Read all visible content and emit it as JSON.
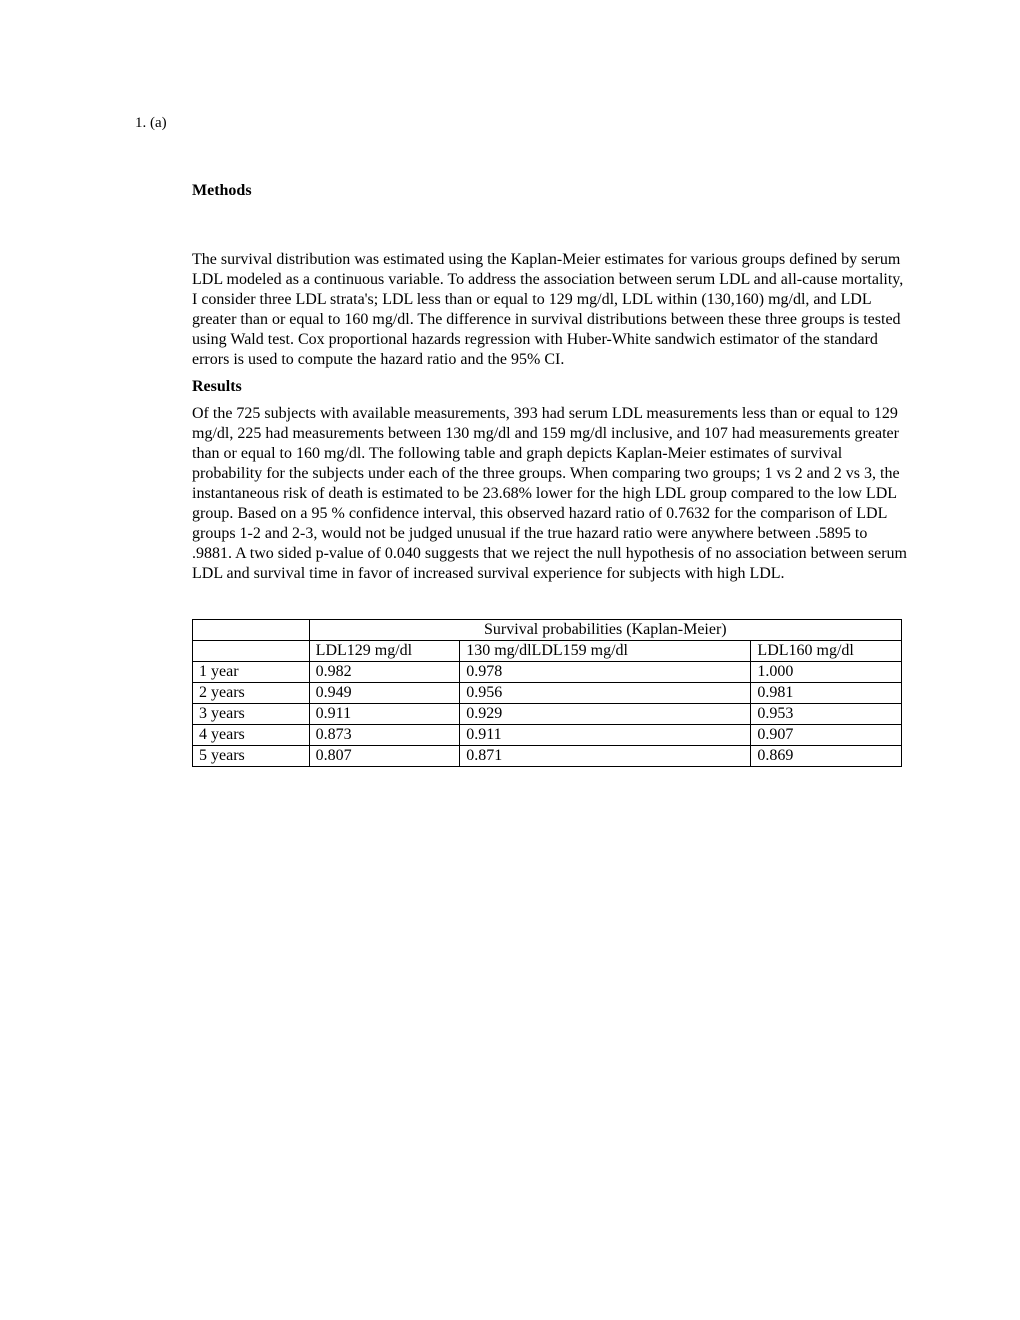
{
  "item_number": "1.   (a)",
  "methods": {
    "heading": "Methods",
    "paragraph": "The survival distribution was estimated using the Kaplan-Meier estimates for various groups defined by serum LDL modeled as a continuous variable. To address the association between serum LDL and all-cause mortality, I consider three LDL strata's; LDL less than or equal to 129 mg/dl, LDL within (130,160) mg/dl, and LDL greater than or equal to 160 mg/dl. The difference in survival distributions between these three groups is tested using Wald test. Cox proportional hazards regression with Huber-White sandwich estimator of the standard errors is used to compute the hazard ratio and the 95% CI."
  },
  "results": {
    "heading": "Results",
    "paragraph": "Of the 725 subjects with available measurements, 393 had serum LDL measurements less than or equal to 129 mg/dl, 225 had measurements between 130 mg/dl and 159 mg/dl inclusive, and 107 had measurements greater than or equal to 160 mg/dl. The following table and graph depicts Kaplan-Meier estimates of survival probability for the subjects under each of the three groups. When comparing two groups; 1 vs 2 and 2 vs 3, the instantaneous risk of death is estimated to be 23.68% lower for the high LDL group compared to the low LDL group. Based on a 95 % confidence interval, this observed hazard ratio of 0.7632 for the comparison of LDL groups 1-2 and 2-3, would not be judged unusual if the true hazard ratio were anywhere between .5895 to .9881. A two sided p-value of 0.040 suggests that we reject the null hypothesis of no association between serum LDL and survival time in favor of increased survival experience for subjects with high LDL."
  },
  "table": {
    "header_span": "Survival probabilities (Kaplan-Meier)",
    "columns": [
      "",
      "LDL129 mg/dl",
      "130 mg/dlLDL159 mg/dl",
      "LDL160 mg/dl"
    ],
    "rows": [
      [
        "1 year",
        "0.982",
        "0.978",
        "1.000"
      ],
      [
        "2 years",
        "0.949",
        "0.956",
        "0.981"
      ],
      [
        "3 years",
        "0.911",
        "0.929",
        "0.953"
      ],
      [
        "4 years",
        "0.873",
        "0.911",
        "0.907"
      ],
      [
        "5 years",
        "0.807",
        "0.871",
        "0.869"
      ]
    ]
  }
}
